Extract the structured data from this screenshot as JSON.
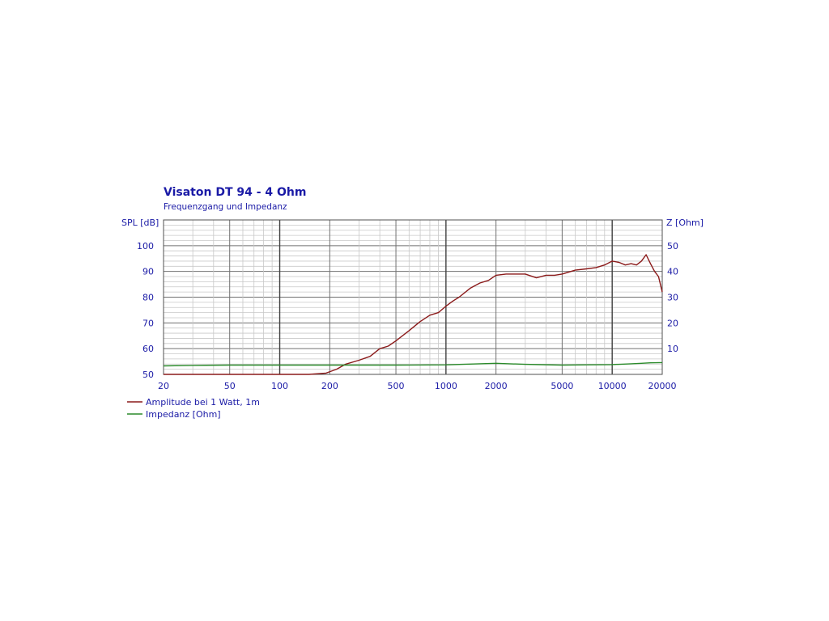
{
  "colors": {
    "text": "#1a1aa6",
    "grid_major": "#707070",
    "grid_minor": "#c8c8c8",
    "amplitude": "#8b1a1a",
    "impedance": "#2a8a2a"
  },
  "chart_data": {
    "type": "line",
    "title": "Visaton DT 94 - 4 Ohm",
    "subtitle": "Frequenzgang und Impedanz",
    "ylabel_left": "SPL [dB]",
    "ylabel_right": "Z [Ohm]",
    "x_scale": "log",
    "xlim": [
      20,
      20000
    ],
    "ylim_left": [
      50,
      110
    ],
    "ylim_right": [
      0,
      60
    ],
    "grid": true,
    "legend_position": "bottom-left",
    "x_ticks": [
      20,
      50,
      100,
      200,
      500,
      1000,
      2000,
      5000,
      10000,
      20000
    ],
    "x_tick_labels": [
      "20",
      "50",
      "100",
      "200",
      "500",
      "1000",
      "2000",
      "5000",
      "10000",
      "20000"
    ],
    "y_left_ticks": [
      50,
      60,
      70,
      80,
      90,
      100
    ],
    "y_left_tick_labels": [
      "50",
      "60",
      "70",
      "80",
      "90",
      "100"
    ],
    "y_right_ticks": [
      10,
      20,
      30,
      40,
      50
    ],
    "y_right_tick_labels": [
      "10",
      "20",
      "30",
      "40",
      "50"
    ],
    "series": [
      {
        "name": "Amplitude bei 1 Watt, 1m",
        "axis": "left",
        "color": "#8b1a1a",
        "x": [
          20,
          50,
          100,
          150,
          190,
          220,
          250,
          300,
          350,
          400,
          450,
          500,
          600,
          700,
          800,
          900,
          1000,
          1100,
          1200,
          1400,
          1600,
          1800,
          2000,
          2300,
          2600,
          3000,
          3500,
          4000,
          4500,
          5000,
          6000,
          7000,
          8000,
          9000,
          10000,
          11000,
          12000,
          13000,
          14000,
          15000,
          16000,
          17000,
          18000,
          19000,
          20000
        ],
        "y": [
          50,
          50,
          50,
          50,
          50.5,
          52,
          54,
          55.5,
          57,
          60,
          61,
          63,
          67,
          70.5,
          73,
          74,
          76.5,
          78.5,
          80,
          83.5,
          85.5,
          86.5,
          88.5,
          89,
          89,
          89,
          87.5,
          88.5,
          88.5,
          89,
          90.5,
          91,
          91.5,
          92.5,
          94,
          93.5,
          92.5,
          93,
          92.5,
          94,
          96.5,
          93,
          90,
          88,
          82
        ]
      },
      {
        "name": "Impedanz [Ohm]",
        "axis": "right",
        "color": "#2a8a2a",
        "x": [
          20,
          30,
          50,
          100,
          200,
          500,
          1000,
          2000,
          3000,
          5000,
          7000,
          10000,
          13000,
          15000,
          17000,
          20000
        ],
        "y": [
          3.3,
          3.5,
          3.6,
          3.6,
          3.6,
          3.6,
          3.7,
          4.3,
          3.9,
          3.6,
          3.7,
          3.8,
          4.1,
          4.3,
          4.5,
          4.6
        ]
      }
    ]
  }
}
